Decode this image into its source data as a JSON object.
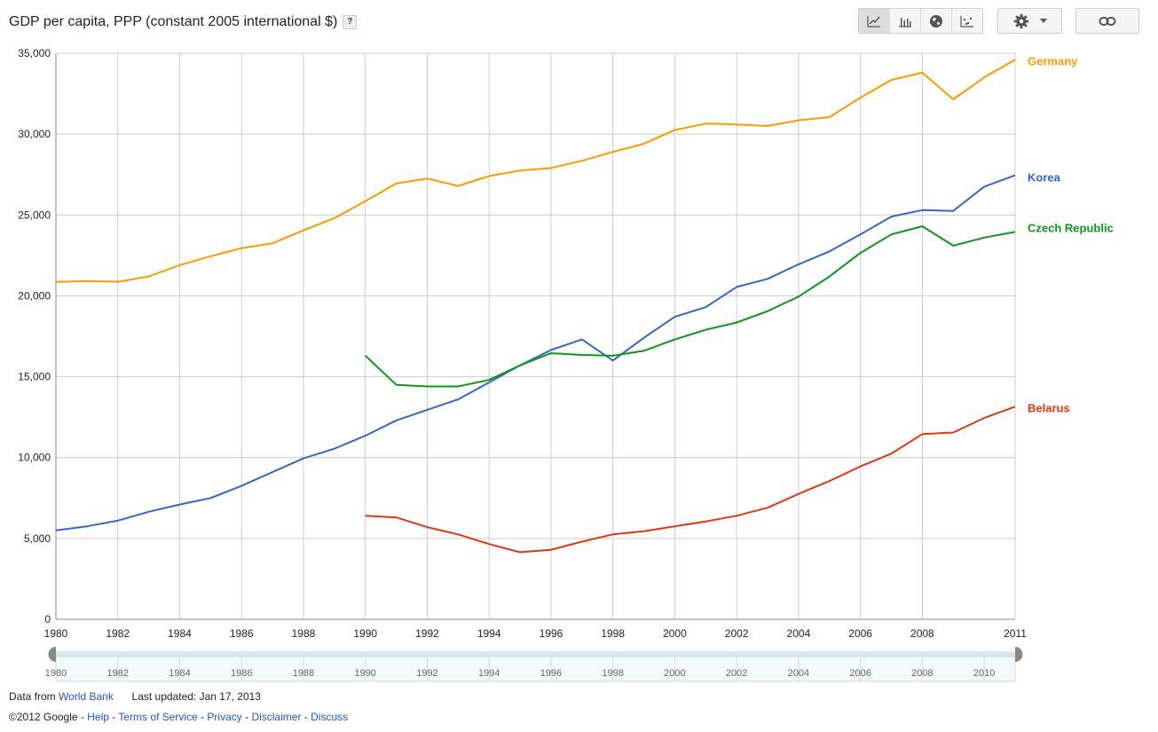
{
  "header": {
    "title": "GDP per capita, PPP (constant 2005 international $)",
    "help": "?"
  },
  "toolbar": {
    "views": [
      "line-chart-icon",
      "bar-chart-icon",
      "globe-map-icon",
      "scatter-plot-icon"
    ],
    "settings_icon": "gear-icon",
    "link_icon": "link-icon"
  },
  "chart_data": {
    "type": "line",
    "xlim": [
      1980,
      2011
    ],
    "ylim": [
      0,
      35000
    ],
    "x_ticks": [
      1980,
      1982,
      1984,
      1986,
      1988,
      1990,
      1992,
      1994,
      1996,
      1998,
      2000,
      2002,
      2004,
      2006,
      2008,
      2011
    ],
    "y_ticks": [
      0,
      5000,
      10000,
      15000,
      20000,
      25000,
      30000,
      35000
    ],
    "y_tick_labels": [
      "0",
      "5,000",
      "10,000",
      "15,000",
      "20,000",
      "25,000",
      "30,000",
      "35,000"
    ],
    "grid": true,
    "legend": "end-of-line labels",
    "series": [
      {
        "name": "Germany",
        "color": "#ff9900",
        "x": [
          1980,
          1981,
          1982,
          1983,
          1984,
          1985,
          1986,
          1987,
          1988,
          1989,
          1990,
          1991,
          1992,
          1993,
          1994,
          1995,
          1996,
          1997,
          1998,
          1999,
          2000,
          2001,
          2002,
          2003,
          2004,
          2005,
          2006,
          2007,
          2008,
          2009,
          2010,
          2011
        ],
        "values": [
          20850,
          20920,
          20870,
          21200,
          21900,
          22450,
          22950,
          23250,
          24050,
          24800,
          25850,
          26950,
          27250,
          26800,
          27400,
          27750,
          27900,
          28350,
          28900,
          29400,
          30250,
          30650,
          30600,
          30500,
          30850,
          31050,
          32250,
          33350,
          33800,
          32150,
          33500,
          34600
        ]
      },
      {
        "name": "Korea",
        "color": "#3366cc",
        "x": [
          1980,
          1981,
          1982,
          1983,
          1984,
          1985,
          1986,
          1987,
          1988,
          1989,
          1990,
          1991,
          1992,
          1993,
          1994,
          1995,
          1996,
          1997,
          1998,
          1999,
          2000,
          2001,
          2002,
          2003,
          2004,
          2005,
          2006,
          2007,
          2008,
          2009,
          2010,
          2011
        ],
        "values": [
          5500,
          5750,
          6100,
          6650,
          7100,
          7500,
          8250,
          9100,
          9950,
          10550,
          11350,
          12300,
          12950,
          13600,
          14650,
          15700,
          16650,
          17300,
          16000,
          17400,
          18700,
          19300,
          20550,
          21050,
          21950,
          22750,
          23800,
          24900,
          25300,
          25250,
          26750,
          27450
        ]
      },
      {
        "name": "Czech Republic",
        "color": "#109618",
        "x": [
          1990,
          1991,
          1992,
          1993,
          1994,
          1995,
          1996,
          1997,
          1998,
          1999,
          2000,
          2001,
          2002,
          2003,
          2004,
          2005,
          2006,
          2007,
          2008,
          2009,
          2010,
          2011
        ],
        "values": [
          16300,
          14500,
          14400,
          14400,
          14800,
          15700,
          16450,
          16350,
          16300,
          16600,
          17300,
          17900,
          18350,
          19050,
          19950,
          21200,
          22650,
          23800,
          24300,
          23100,
          23600,
          23950
        ]
      },
      {
        "name": "Belarus",
        "color": "#dc3912",
        "x": [
          1990,
          1991,
          1992,
          1993,
          1994,
          1995,
          1996,
          1997,
          1998,
          1999,
          2000,
          2001,
          2002,
          2003,
          2004,
          2005,
          2006,
          2007,
          2008,
          2009,
          2010,
          2011
        ],
        "values": [
          6400,
          6300,
          5700,
          5250,
          4650,
          4150,
          4300,
          4800,
          5250,
          5450,
          5750,
          6050,
          6400,
          6900,
          7750,
          8550,
          9450,
          10250,
          11450,
          11550,
          12450,
          13150
        ]
      }
    ]
  },
  "timeline": {
    "range": [
      1980,
      2011
    ],
    "tick_labels": [
      "1980",
      "1982",
      "1984",
      "1986",
      "1988",
      "1990",
      "1992",
      "1994",
      "1996",
      "1998",
      "2000",
      "2002",
      "2004",
      "2006",
      "2008",
      "2010"
    ]
  },
  "footer": {
    "data_from_label": "Data from",
    "data_source": "World Bank",
    "last_updated": "Last updated: Jan 17, 2013",
    "copyright": "©2012 Google",
    "sep": " - ",
    "links": [
      "Help",
      "Terms of Service",
      "Privacy",
      "Disclaimer",
      "Discuss"
    ]
  }
}
